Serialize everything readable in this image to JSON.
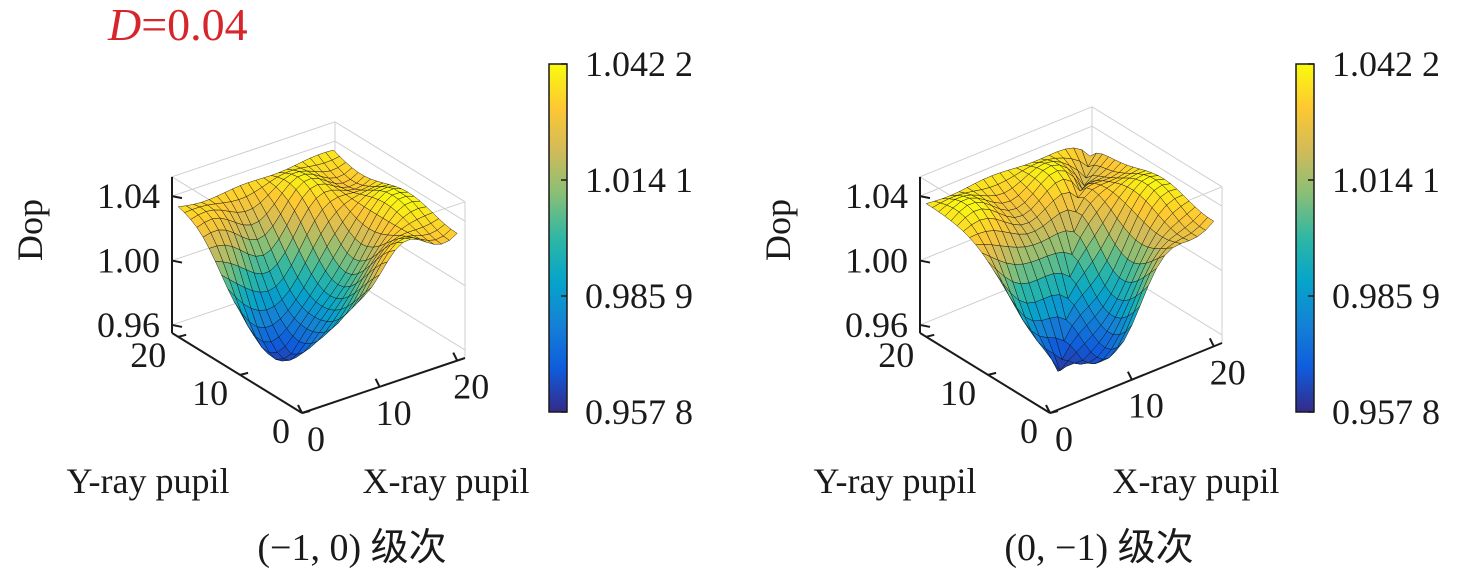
{
  "figure_label": {
    "var": "D",
    "value": "=0.04",
    "color": "#d7262b"
  },
  "colormap": [
    "#352a87",
    "#0f5cdd",
    "#1481d6",
    "#06a4ca",
    "#2eb7a4",
    "#87bf77",
    "#d1bb59",
    "#fec832",
    "#f9fb0e"
  ],
  "chart_data": [
    {
      "type": "surface",
      "caption": "(−1, 0) 级次",
      "zlabel": "Dop",
      "xlabel": "X-ray pupil",
      "ylabel": "Y-ray pupil",
      "xlim": [
        0,
        21
      ],
      "ylim": [
        0,
        21
      ],
      "zlim": [
        0.955,
        1.052
      ],
      "x_ticks": [
        "0",
        "10",
        "20"
      ],
      "y_ticks": [
        "0",
        "10",
        "20"
      ],
      "z_ticks": [
        "0.96",
        "1.00",
        "1.04"
      ],
      "z_tick_values": [
        0.96,
        1.0,
        1.04
      ],
      "colorbar": {
        "min": 0.9578,
        "max": 1.0422,
        "ticks": [
          "1.042 2",
          "1.014 1",
          "0.985 9",
          "0.957 8"
        ]
      },
      "surface": {
        "min": 0.9578,
        "max": 1.0422,
        "cx": 5,
        "cy": 8,
        "sharp_ridge": false
      }
    },
    {
      "type": "surface",
      "caption": "(0, −1) 级次",
      "zlabel": "Dop",
      "xlabel": "X-ray pupil",
      "ylabel": "Y-ray pupil",
      "xlim": [
        0,
        21
      ],
      "ylim": [
        0,
        21
      ],
      "zlim": [
        0.955,
        1.052
      ],
      "x_ticks": [
        "0",
        "10",
        "20"
      ],
      "y_ticks": [
        "0",
        "10",
        "20"
      ],
      "z_ticks": [
        "0.96",
        "1.00",
        "1.04"
      ],
      "z_tick_values": [
        0.96,
        1.0,
        1.04
      ],
      "colorbar": {
        "min": 0.9578,
        "max": 1.0422,
        "ticks": [
          "1.042 2",
          "1.014 1",
          "0.985 9",
          "0.957 8"
        ]
      },
      "surface": {
        "min": 0.9578,
        "max": 1.0422,
        "cx": 7,
        "cy": 4,
        "sharp_ridge": true
      }
    }
  ]
}
